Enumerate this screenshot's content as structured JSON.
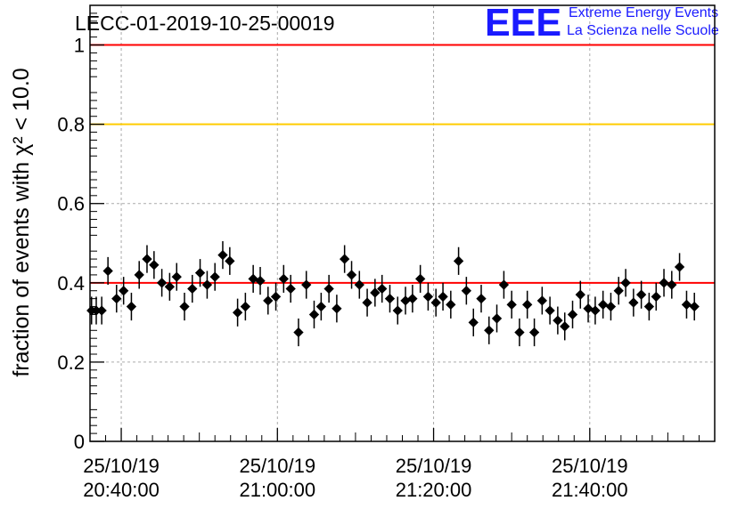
{
  "chart_data": {
    "type": "scatter",
    "title": "LECC-01-2019-10-25-00019",
    "ylabel": "fraction of events with χ² < 10.0",
    "ylim": [
      0,
      1.1
    ],
    "yticks": [
      "0",
      "0.2",
      "0.4",
      "0.6",
      "0.8",
      "1"
    ],
    "xlim": [
      "25/10/19 20:36:00",
      "25/10/19 21:56:00"
    ],
    "xticks": [
      {
        "time": "20:40:00",
        "date": "25/10/19"
      },
      {
        "time": "21:00:00",
        "date": "25/10/19"
      },
      {
        "time": "21:20:00",
        "date": "25/10/19"
      },
      {
        "time": "21:40:00",
        "date": "25/10/19"
      }
    ],
    "grid": true,
    "reference_lines": [
      {
        "y": 1.0,
        "color": "#ff0000"
      },
      {
        "y": 0.8,
        "color": "#ffcc00"
      },
      {
        "y": 0.4,
        "color": "#ff0000"
      }
    ],
    "series": [
      {
        "marker_color": "#000000",
        "error": 0.035,
        "points": [
          [
            "20:36:12",
            0.33
          ],
          [
            "20:36:48",
            0.33
          ],
          [
            "20:37:30",
            0.33
          ],
          [
            "20:38:18",
            0.43
          ],
          [
            "20:39:24",
            0.36
          ],
          [
            "20:40:18",
            0.38
          ],
          [
            "20:41:18",
            0.34
          ],
          [
            "20:42:18",
            0.42
          ],
          [
            "20:43:18",
            0.46
          ],
          [
            "20:44:12",
            0.445
          ],
          [
            "20:45:12",
            0.4
          ],
          [
            "20:46:12",
            0.39
          ],
          [
            "20:47:06",
            0.415
          ],
          [
            "20:48:06",
            0.34
          ],
          [
            "20:49:06",
            0.385
          ],
          [
            "20:50:06",
            0.425
          ],
          [
            "20:51:00",
            0.395
          ],
          [
            "20:52:00",
            0.415
          ],
          [
            "20:53:00",
            0.47
          ],
          [
            "20:53:54",
            0.455
          ],
          [
            "20:54:54",
            0.325
          ],
          [
            "20:55:54",
            0.34
          ],
          [
            "20:56:54",
            0.41
          ],
          [
            "20:57:48",
            0.405
          ],
          [
            "20:58:48",
            0.355
          ],
          [
            "20:59:48",
            0.365
          ],
          [
            "21:00:48",
            0.41
          ],
          [
            "21:01:42",
            0.385
          ],
          [
            "21:02:42",
            0.275
          ],
          [
            "21:03:42",
            0.395
          ],
          [
            "21:04:42",
            0.32
          ],
          [
            "21:05:36",
            0.34
          ],
          [
            "21:06:36",
            0.385
          ],
          [
            "21:07:36",
            0.335
          ],
          [
            "21:08:36",
            0.46
          ],
          [
            "21:09:30",
            0.42
          ],
          [
            "21:10:30",
            0.395
          ],
          [
            "21:11:30",
            0.35
          ],
          [
            "21:12:30",
            0.375
          ],
          [
            "21:13:24",
            0.385
          ],
          [
            "21:14:24",
            0.36
          ],
          [
            "21:15:24",
            0.33
          ],
          [
            "21:16:24",
            0.355
          ],
          [
            "21:17:18",
            0.36
          ],
          [
            "21:18:18",
            0.41
          ],
          [
            "21:19:18",
            0.365
          ],
          [
            "21:20:18",
            0.35
          ],
          [
            "21:21:12",
            0.365
          ],
          [
            "21:22:12",
            0.345
          ],
          [
            "21:23:12",
            0.455
          ],
          [
            "21:24:12",
            0.38
          ],
          [
            "21:25:06",
            0.3
          ],
          [
            "21:26:06",
            0.36
          ],
          [
            "21:27:06",
            0.28
          ],
          [
            "21:28:06",
            0.31
          ],
          [
            "21:29:00",
            0.395
          ],
          [
            "21:30:00",
            0.345
          ],
          [
            "21:31:00",
            0.275
          ],
          [
            "21:32:00",
            0.345
          ],
          [
            "21:32:54",
            0.275
          ],
          [
            "21:33:54",
            0.355
          ],
          [
            "21:34:54",
            0.33
          ],
          [
            "21:35:54",
            0.305
          ],
          [
            "21:36:48",
            0.29
          ],
          [
            "21:37:48",
            0.32
          ],
          [
            "21:38:48",
            0.37
          ],
          [
            "21:39:48",
            0.335
          ],
          [
            "21:40:42",
            0.33
          ],
          [
            "21:41:42",
            0.345
          ],
          [
            "21:42:42",
            0.34
          ],
          [
            "21:43:42",
            0.38
          ],
          [
            "21:44:36",
            0.4
          ],
          [
            "21:45:36",
            0.35
          ],
          [
            "21:46:36",
            0.37
          ],
          [
            "21:47:36",
            0.34
          ],
          [
            "21:48:30",
            0.365
          ],
          [
            "21:49:30",
            0.4
          ],
          [
            "21:50:30",
            0.395
          ],
          [
            "21:51:30",
            0.44
          ],
          [
            "21:52:24",
            0.345
          ],
          [
            "21:53:24",
            0.34
          ]
        ]
      }
    ]
  },
  "logo": {
    "mark": "EEE",
    "line1": "Extreme Energy Events",
    "line2": "La Scienza nelle Scuole"
  }
}
